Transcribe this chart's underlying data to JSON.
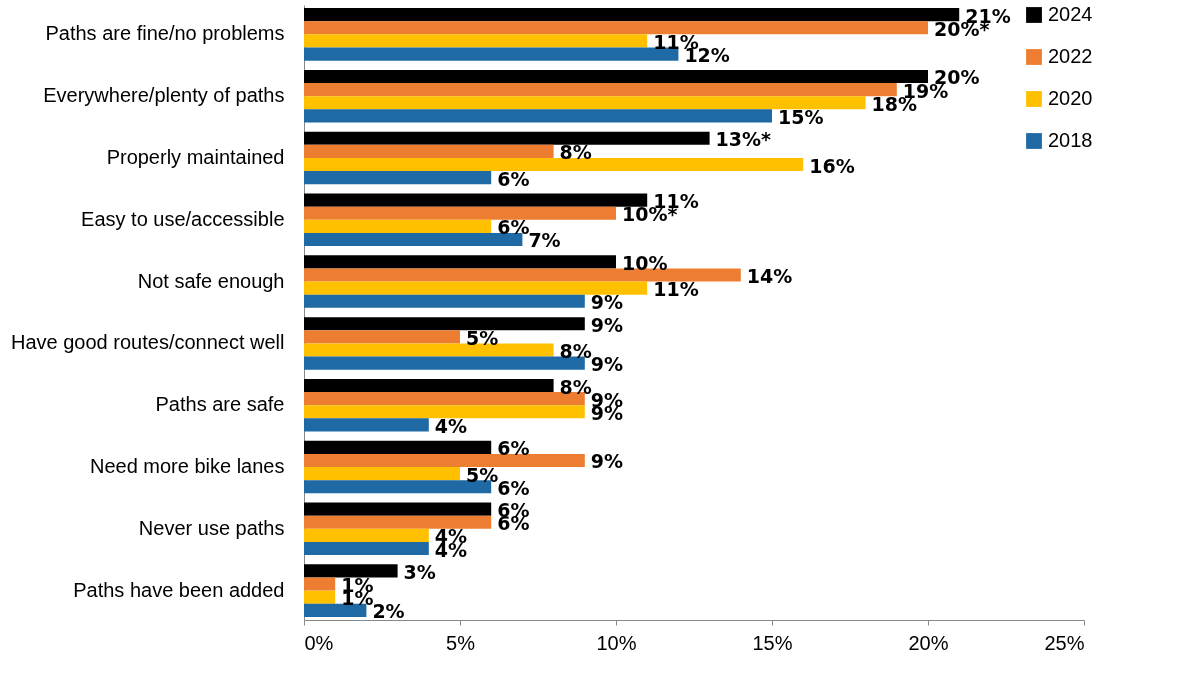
{
  "chart_data": {
    "type": "bar",
    "orientation": "horizontal",
    "categories": [
      "Paths are fine/no problems",
      "Everywhere/plenty of paths",
      "Properly maintained",
      "Easy to use/accessible",
      "Not safe enough",
      "Have good routes/connect well",
      "Paths are safe",
      "Need more bike lanes",
      "Never use paths",
      "Paths have been added"
    ],
    "series": [
      {
        "name": "2024",
        "color": "#000000",
        "values": [
          21,
          20,
          13,
          11,
          10,
          9,
          8,
          6,
          6,
          3
        ],
        "value_labels": [
          "21%",
          "20%",
          "13%*",
          "11%",
          "10%",
          "9%",
          "8%",
          "6%",
          "6%",
          "3%"
        ]
      },
      {
        "name": "2022",
        "color": "#ed7d31",
        "values": [
          20,
          19,
          8,
          10,
          14,
          5,
          9,
          9,
          6,
          1
        ],
        "value_labels": [
          "20%*",
          "19%",
          "8%",
          "10%*",
          "14%",
          "5%",
          "9%",
          "9%",
          "6%",
          "1%"
        ]
      },
      {
        "name": "2020",
        "color": "#ffc000",
        "values": [
          11,
          18,
          16,
          6,
          11,
          8,
          9,
          5,
          4,
          1
        ],
        "value_labels": [
          "11%",
          "18%",
          "16%",
          "6%",
          "11%",
          "8%",
          "9%",
          "5%",
          "4%",
          "1%"
        ]
      },
      {
        "name": "2018",
        "color": "#1f6aa5",
        "values": [
          12,
          15,
          6,
          7,
          9,
          9,
          4,
          6,
          4,
          2
        ],
        "value_labels": [
          "12%",
          "15%",
          "6%",
          "7%",
          "9%",
          "9%",
          "4%",
          "6%",
          "4%",
          "2%"
        ]
      }
    ],
    "xlim": [
      0,
      25
    ],
    "xticks": [
      {
        "value": 0,
        "label": "0%"
      },
      {
        "value": 5,
        "label": "5%"
      },
      {
        "value": 10,
        "label": "10%"
      },
      {
        "value": 15,
        "label": "15%"
      },
      {
        "value": 20,
        "label": "20%"
      },
      {
        "value": 25,
        "label": "25%"
      }
    ],
    "legend": "right",
    "grid": false
  }
}
